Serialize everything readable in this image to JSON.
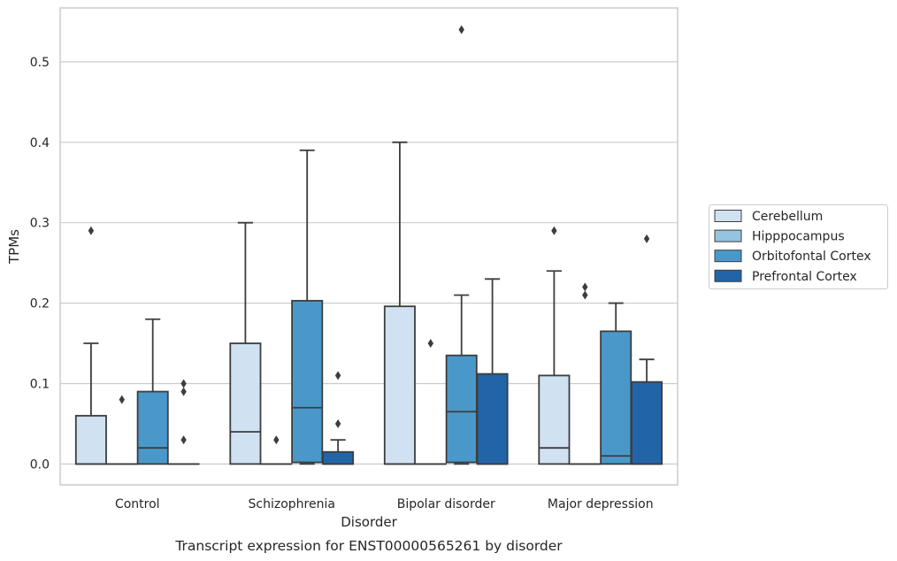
{
  "caption": "Transcript expression for ENST00000565261 by disorder",
  "chart_data": {
    "type": "boxplot",
    "xlabel": "Disorder",
    "ylabel": "TPMs",
    "ylim": [
      -0.026,
      0.567
    ],
    "yticks": [
      0.0,
      0.1,
      0.2,
      0.3,
      0.4,
      0.5
    ],
    "ytick_labels": [
      "0.0",
      "0.1",
      "0.2",
      "0.3",
      "0.4",
      "0.5"
    ],
    "grid": true,
    "legend_position": "right",
    "categories": [
      "Control",
      "Schizophrenia",
      "Bipolar disorder",
      "Major depression"
    ],
    "series": [
      {
        "name": "Cerebellum",
        "color": "#d0e1f2",
        "boxes": [
          {
            "min": 0.0,
            "q1": 0.0,
            "median": 0.0,
            "q3": 0.06,
            "max": 0.15,
            "outliers": [
              0.29
            ]
          },
          {
            "min": 0.0,
            "q1": 0.0,
            "median": 0.04,
            "q3": 0.15,
            "max": 0.3,
            "outliers": []
          },
          {
            "min": 0.0,
            "q1": 0.0,
            "median": 0.0,
            "q3": 0.196,
            "max": 0.4,
            "outliers": []
          },
          {
            "min": 0.0,
            "q1": 0.0,
            "median": 0.02,
            "q3": 0.11,
            "max": 0.24,
            "outliers": [
              0.29
            ]
          }
        ]
      },
      {
        "name": "Hipppocampus",
        "color": "#94c4df",
        "boxes": [
          {
            "min": 0.0,
            "q1": 0.0,
            "median": 0.0,
            "q3": 0.0,
            "max": 0.0,
            "outliers": [
              0.08
            ]
          },
          {
            "min": 0.0,
            "q1": 0.0,
            "median": 0.0,
            "q3": 0.0,
            "max": 0.0,
            "outliers": [
              0.03
            ]
          },
          {
            "min": 0.0,
            "q1": 0.0,
            "median": 0.0,
            "q3": 0.0,
            "max": 0.0,
            "outliers": [
              0.15
            ]
          },
          {
            "min": 0.0,
            "q1": 0.0,
            "median": 0.0,
            "q3": 0.0,
            "max": 0.0,
            "outliers": [
              0.21,
              0.22
            ]
          }
        ]
      },
      {
        "name": "Orbitofontal Cortex",
        "color": "#4a98c9",
        "boxes": [
          {
            "min": 0.0,
            "q1": 0.0,
            "median": 0.02,
            "q3": 0.09,
            "max": 0.18,
            "outliers": []
          },
          {
            "min": 0.0,
            "q1": 0.002,
            "median": 0.07,
            "q3": 0.203,
            "max": 0.39,
            "outliers": []
          },
          {
            "min": 0.0,
            "q1": 0.002,
            "median": 0.065,
            "q3": 0.135,
            "max": 0.21,
            "outliers": [
              0.54
            ]
          },
          {
            "min": 0.0,
            "q1": 0.0,
            "median": 0.01,
            "q3": 0.165,
            "max": 0.2,
            "outliers": []
          }
        ]
      },
      {
        "name": "Prefrontal Cortex",
        "color": "#2264a8",
        "boxes": [
          {
            "min": 0.0,
            "q1": 0.0,
            "median": 0.0,
            "q3": 0.0,
            "max": 0.0,
            "outliers": [
              0.03,
              0.09,
              0.1
            ]
          },
          {
            "min": 0.0,
            "q1": 0.0,
            "median": 0.0,
            "q3": 0.015,
            "max": 0.03,
            "outliers": [
              0.05,
              0.11
            ]
          },
          {
            "min": 0.0,
            "q1": 0.0,
            "median": 0.0,
            "q3": 0.112,
            "max": 0.23,
            "outliers": []
          },
          {
            "min": 0.0,
            "q1": 0.0,
            "median": 0.0,
            "q3": 0.102,
            "max": 0.13,
            "outliers": [
              0.28
            ]
          }
        ]
      }
    ]
  }
}
